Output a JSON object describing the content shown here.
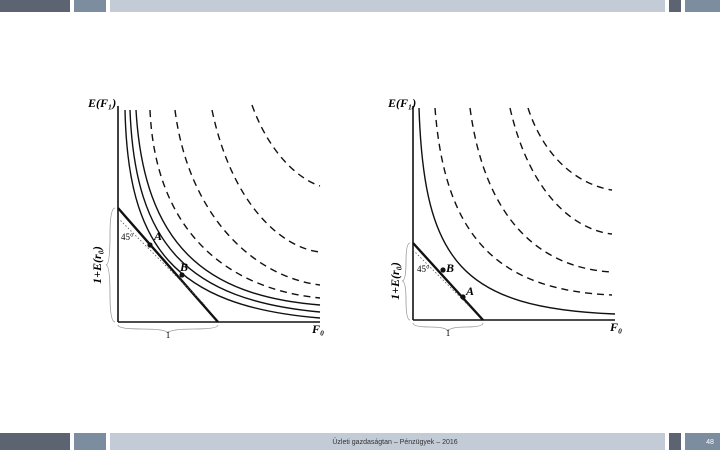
{
  "footer": {
    "text": "Üzleti gazdaságtan – Pénzügyek – 2016",
    "page": "48"
  },
  "panels": [
    {
      "y_axis_label": "E(F₁)",
      "x_axis_label": "F₀",
      "brace_y_label": "1+E(r₀)",
      "brace_x_label": "1",
      "angle_label": "45°",
      "points": [
        {
          "label": "A"
        },
        {
          "label": "B"
        }
      ]
    },
    {
      "y_axis_label": "E(F₁)",
      "x_axis_label": "F₀",
      "brace_y_label": "1+E(r₀)",
      "brace_x_label": "1",
      "angle_label": "45°",
      "points": [
        {
          "label": "B"
        },
        {
          "label": "A"
        }
      ]
    }
  ]
}
